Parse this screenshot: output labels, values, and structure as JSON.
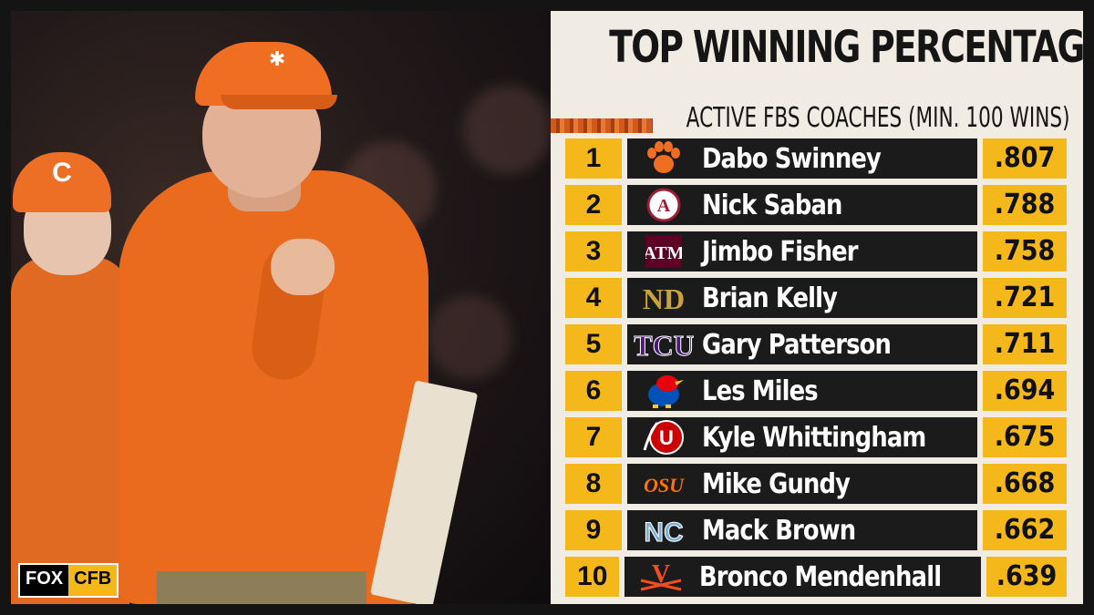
{
  "title": "TOP WINNING PERCENTAGE",
  "subtitle": "ACTIVE FBS COACHES (MIN. 100 WINS)",
  "brand": {
    "fox": "FOX",
    "cfb": "CFB"
  },
  "colors": {
    "accent": "#f4b81a",
    "row_bg": "#1b1b1b",
    "panel_bg": "#f1ece3",
    "clemson_orange": "#f06e21"
  },
  "coaches": [
    {
      "rank": "1",
      "name": "Dabo Swinney",
      "pct": ".807",
      "logo": "clemson-paw-icon"
    },
    {
      "rank": "2",
      "name": "Nick Saban",
      "pct": ".788",
      "logo": "alabama-logo-icon"
    },
    {
      "rank": "3",
      "name": "Jimbo Fisher",
      "pct": ".758",
      "logo": "texas-am-logo-icon"
    },
    {
      "rank": "4",
      "name": "Brian Kelly",
      "pct": ".721",
      "logo": "notre-dame-logo-icon"
    },
    {
      "rank": "5",
      "name": "Gary Patterson",
      "pct": ".711",
      "logo": "tcu-logo-icon"
    },
    {
      "rank": "6",
      "name": "Les Miles",
      "pct": ".694",
      "logo": "kansas-jayhawk-icon"
    },
    {
      "rank": "7",
      "name": "Kyle Whittingham",
      "pct": ".675",
      "logo": "utah-logo-icon"
    },
    {
      "rank": "8",
      "name": "Mike Gundy",
      "pct": ".668",
      "logo": "oklahoma-state-logo-icon"
    },
    {
      "rank": "9",
      "name": "Mack Brown",
      "pct": ".662",
      "logo": "unc-logo-icon"
    },
    {
      "rank": "10",
      "name": "Bronco Mendenhall",
      "pct": ".639",
      "logo": "virginia-logo-icon"
    }
  ]
}
